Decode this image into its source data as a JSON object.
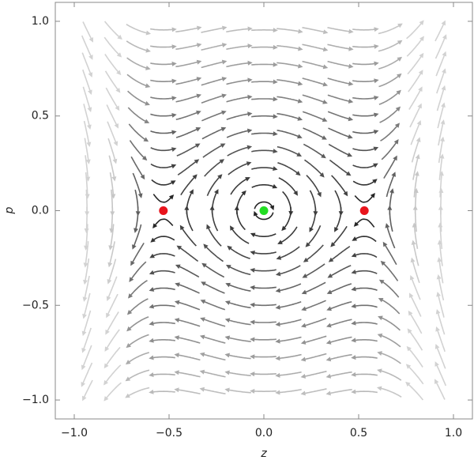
{
  "chart_data": {
    "type": "streamplot",
    "xlabel": "z",
    "ylabel": "p",
    "xlim": [
      -1.1,
      1.1
    ],
    "ylim": [
      -1.1,
      1.1
    ],
    "xticks": [
      {
        "value": -1,
        "label": "−1.0"
      },
      {
        "value": -0.5,
        "label": "−0.5"
      },
      {
        "value": 0,
        "label": "0.0"
      },
      0.5,
      {
        "value": 1,
        "label": "1.0"
      }
    ],
    "yticks": [
      {
        "value": -1,
        "label": "−1.0"
      },
      {
        "value": -0.5,
        "label": "−0.5"
      },
      {
        "value": 0,
        "label": "0.0"
      },
      0.5,
      {
        "value": 1,
        "label": "1.0"
      }
    ],
    "points": {
      "x": [
        -0.53,
        0,
        0.53
      ],
      "y": [
        0,
        0,
        0
      ],
      "colors": [
        "#e8141c",
        "#22dd22",
        "#e8141c"
      ]
    }
  }
}
